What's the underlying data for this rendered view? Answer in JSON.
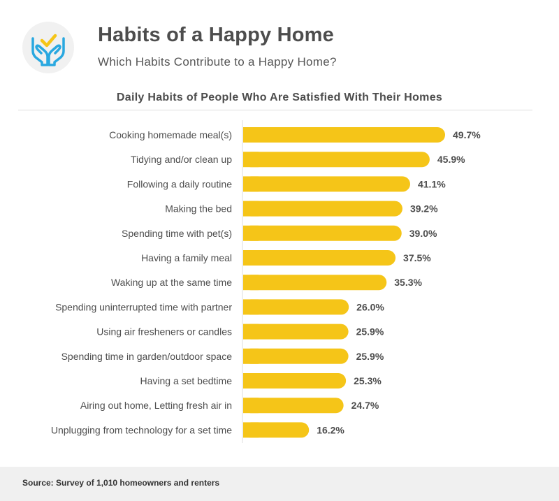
{
  "header": {
    "title": "Habits of a Happy Home",
    "subtitle": "Which Habits Contribute to a Happy Home?",
    "logo_icon": "hands-check-icon"
  },
  "colors": {
    "bar": "#f5c518",
    "icon_hands": "#29a8e0",
    "icon_check": "#f5c518",
    "text": "#4d4d4d"
  },
  "chart_data": {
    "type": "bar",
    "orientation": "horizontal",
    "title": "Daily Habits of People Who Are Satisfied With Their Homes",
    "xlabel": "",
    "ylabel": "",
    "value_suffix": "%",
    "xlim": [
      0,
      49.7
    ],
    "grid": false,
    "categories": [
      "Cooking homemade meal(s)",
      "Tidying and/or clean up",
      "Following a daily routine",
      "Making the bed",
      "Spending time with pet(s)",
      "Having a family meal",
      "Waking up at the same time",
      "Spending uninterrupted time with partner",
      "Using air fresheners or candles",
      "Spending time in garden/outdoor space",
      "Having a set bedtime",
      "Airing out home, Letting fresh air in",
      "Unplugging from technology for a set time"
    ],
    "values": [
      49.7,
      45.9,
      41.1,
      39.2,
      39.0,
      37.5,
      35.3,
      26.0,
      25.9,
      25.9,
      25.3,
      24.7,
      16.2
    ],
    "value_labels": [
      "49.7%",
      "45.9%",
      "41.1%",
      "39.2%",
      "39.0%",
      "37.5%",
      "35.3%",
      "26.0%",
      "25.9%",
      "25.9%",
      "25.3%",
      "24.7%",
      "16.2%"
    ]
  },
  "footer": {
    "source": "Source: Survey of 1,010 homeowners and renters"
  }
}
